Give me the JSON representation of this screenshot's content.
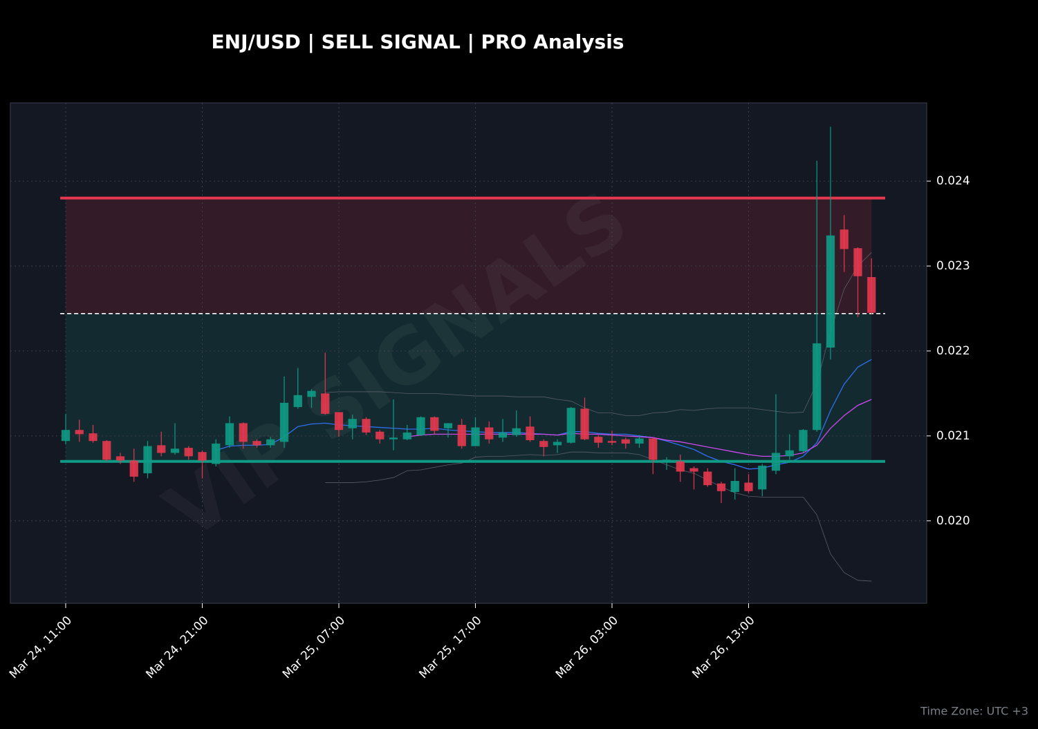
{
  "chart_data": {
    "type": "candlestick",
    "title": "ENJ/USD | SELL SIGNAL | PRO Analysis",
    "watermark": "VIP SIGNALS",
    "footnote": "Time Zone: UTC +3",
    "categories": [
      "Mar 24, 11:00",
      null,
      null,
      null,
      null,
      null,
      null,
      null,
      null,
      null,
      "Mar 24, 21:00",
      null,
      null,
      null,
      null,
      null,
      null,
      null,
      null,
      null,
      "Mar 25, 07:00",
      null,
      null,
      null,
      null,
      null,
      null,
      null,
      null,
      null,
      "Mar 25, 17:00",
      null,
      null,
      null,
      null,
      null,
      null,
      null,
      null,
      null,
      "Mar 26, 03:00",
      null,
      null,
      null,
      null,
      null,
      null,
      null,
      null,
      null,
      "Mar 26, 13:00",
      null,
      null,
      null,
      null,
      null,
      null,
      null,
      null,
      null
    ],
    "open": [
      0.02094,
      0.02107,
      0.02103,
      0.02094,
      0.02076,
      0.02071,
      0.02056,
      0.02089,
      0.0208,
      0.02086,
      0.02081,
      0.02067,
      0.02089,
      0.02115,
      0.02094,
      0.02089,
      0.02093,
      0.02134,
      0.02146,
      0.0215,
      0.02128,
      0.02109,
      0.0212,
      0.02105,
      0.02096,
      0.02096,
      0.02101,
      0.02122,
      0.02109,
      0.02113,
      0.02088,
      0.0211,
      0.02098,
      0.02101,
      0.02111,
      0.02094,
      0.02089,
      0.02092,
      0.02132,
      0.02099,
      0.02094,
      0.02096,
      0.02091,
      0.02097,
      0.0207,
      0.0207,
      0.02062,
      0.02058,
      0.02044,
      0.02034,
      0.02045,
      0.02037,
      0.02059,
      0.02076,
      0.02082,
      0.02107,
      0.02204,
      0.02343,
      0.02321,
      0.02287
    ],
    "high": [
      0.02126,
      0.02119,
      0.02113,
      0.02095,
      0.0208,
      0.02085,
      0.02094,
      0.02105,
      0.02115,
      0.02088,
      0.02083,
      0.02096,
      0.02123,
      0.02116,
      0.02096,
      0.02099,
      0.0217,
      0.0218,
      0.02155,
      0.02198,
      0.02128,
      0.02125,
      0.02122,
      0.02107,
      0.02143,
      0.02113,
      0.02123,
      0.02123,
      0.02115,
      0.0212,
      0.02122,
      0.02117,
      0.0212,
      0.0213,
      0.02123,
      0.02096,
      0.02096,
      0.02134,
      0.02145,
      0.02101,
      0.02106,
      0.02098,
      0.02101,
      0.02098,
      0.02075,
      0.02078,
      0.02064,
      0.02062,
      0.02046,
      0.02062,
      0.02055,
      0.02067,
      0.02149,
      0.02102,
      0.02108,
      0.02424,
      0.02464,
      0.0236,
      0.02322,
      0.02309
    ],
    "low": [
      0.0209,
      0.02093,
      0.02092,
      0.0207,
      0.02067,
      0.02046,
      0.0205,
      0.02076,
      0.02078,
      0.02072,
      0.0205,
      0.02064,
      0.02086,
      0.02085,
      0.02086,
      0.02086,
      0.02086,
      0.02132,
      0.02133,
      0.02125,
      0.02099,
      0.02096,
      0.02101,
      0.02091,
      0.02083,
      0.02095,
      0.021,
      0.02102,
      0.02098,
      0.02085,
      0.02088,
      0.02091,
      0.02093,
      0.02099,
      0.02093,
      0.02076,
      0.0208,
      0.02091,
      0.02095,
      0.02086,
      0.02089,
      0.02085,
      0.02086,
      0.02055,
      0.0206,
      0.02046,
      0.02037,
      0.0204,
      0.02021,
      0.02025,
      0.02033,
      0.02029,
      0.02055,
      0.02072,
      0.0208,
      0.02105,
      0.0219,
      0.02293,
      0.0224,
      0.02243
    ],
    "close": [
      0.02107,
      0.02102,
      0.02094,
      0.02072,
      0.02071,
      0.02052,
      0.02088,
      0.0208,
      0.02085,
      0.02076,
      0.02071,
      0.02091,
      0.02115,
      0.02093,
      0.02089,
      0.02096,
      0.02139,
      0.02148,
      0.02153,
      0.02126,
      0.02107,
      0.0212,
      0.02104,
      0.02096,
      0.02098,
      0.02104,
      0.02122,
      0.02106,
      0.02115,
      0.02088,
      0.0211,
      0.02096,
      0.02104,
      0.02109,
      0.02095,
      0.02087,
      0.02093,
      0.02133,
      0.02096,
      0.02092,
      0.02092,
      0.02091,
      0.02097,
      0.02072,
      0.02072,
      0.02058,
      0.02058,
      0.02042,
      0.02035,
      0.02047,
      0.02035,
      0.02065,
      0.0208,
      0.02083,
      0.02107,
      0.02209,
      0.02336,
      0.0232,
      0.02288,
      0.02245
    ],
    "up_color": "#0f9b85",
    "down_color": "#e5384f",
    "series": [
      {
        "color": "#2f6ff0",
        "width": 1.3,
        "values": [
          null,
          null,
          null,
          null,
          null,
          null,
          null,
          null,
          null,
          null,
          null,
          0.02083,
          0.02088,
          0.02089,
          0.02089,
          0.0209,
          0.02099,
          0.02111,
          0.02114,
          0.02115,
          0.02113,
          0.02112,
          0.02111,
          0.0211,
          0.02109,
          0.02108,
          0.02108,
          0.02109,
          0.02107,
          0.02106,
          0.02105,
          0.02104,
          0.02104,
          0.02104,
          0.02103,
          0.02102,
          0.02101,
          0.02105,
          0.02105,
          0.02103,
          0.02102,
          0.02102,
          0.021,
          0.02098,
          0.02094,
          0.02089,
          0.02084,
          0.02076,
          0.0207,
          0.02066,
          0.02061,
          0.02062,
          0.02066,
          0.02069,
          0.02076,
          0.02092,
          0.0213,
          0.02161,
          0.02181,
          0.0219
        ]
      },
      {
        "color": "#d048f0",
        "width": 1.3,
        "values": [
          null,
          null,
          null,
          null,
          null,
          null,
          null,
          null,
          null,
          null,
          null,
          null,
          null,
          null,
          null,
          null,
          null,
          null,
          null,
          null,
          null,
          null,
          null,
          null,
          null,
          0.02099,
          0.02101,
          0.02102,
          0.02102,
          0.02102,
          0.02102,
          0.02102,
          0.02102,
          0.02102,
          0.02102,
          0.02102,
          0.02101,
          0.02103,
          0.02102,
          0.02102,
          0.02101,
          0.021,
          0.02099,
          0.02098,
          0.02095,
          0.02093,
          0.0209,
          0.02087,
          0.02084,
          0.02081,
          0.02078,
          0.02076,
          0.02076,
          0.02077,
          0.0208,
          0.02089,
          0.02109,
          0.02124,
          0.02136,
          0.02143
        ]
      },
      {
        "color": "#5a5e68",
        "width": 0.8,
        "values": [
          null,
          null,
          null,
          null,
          null,
          null,
          null,
          null,
          null,
          null,
          null,
          null,
          null,
          null,
          null,
          null,
          null,
          null,
          null,
          0.02151,
          0.02152,
          0.02152,
          0.02152,
          0.02152,
          0.02151,
          0.0215,
          0.0215,
          0.0215,
          0.02149,
          0.02148,
          0.02147,
          0.02147,
          0.02147,
          0.02146,
          0.02146,
          0.02146,
          0.02143,
          0.02141,
          0.02133,
          0.02127,
          0.02127,
          0.02124,
          0.02124,
          0.02127,
          0.02128,
          0.02131,
          0.0213,
          0.02132,
          0.02133,
          0.02133,
          0.02133,
          0.02131,
          0.02129,
          0.02127,
          0.02128,
          0.02162,
          0.02223,
          0.02273,
          0.023,
          0.02316
        ]
      },
      {
        "color": "#5a5e68",
        "width": 0.8,
        "values": [
          null,
          null,
          null,
          null,
          null,
          null,
          null,
          null,
          null,
          null,
          null,
          null,
          null,
          null,
          null,
          null,
          null,
          null,
          null,
          0.02045,
          0.02045,
          0.02045,
          0.02046,
          0.02048,
          0.02051,
          0.02059,
          0.0206,
          0.02063,
          0.02066,
          0.02068,
          0.02075,
          0.02076,
          0.02076,
          0.02077,
          0.02078,
          0.02077,
          0.02078,
          0.02081,
          0.02081,
          0.0208,
          0.0208,
          0.0208,
          0.02078,
          0.02072,
          0.02066,
          0.0206,
          0.02056,
          0.02048,
          0.0204,
          0.02033,
          0.02029,
          0.02028,
          0.02028,
          0.02028,
          0.02028,
          0.02007,
          0.01961,
          0.01939,
          0.0193,
          0.01929
        ]
      }
    ],
    "hlines": [
      {
        "value": 0.0238,
        "color": "#e5384f",
        "style": "solid"
      },
      {
        "value": 0.02244,
        "color": "#ffffff",
        "style": "dashed"
      },
      {
        "value": 0.0207,
        "color": "#0f9b85",
        "style": "solid"
      }
    ],
    "ylim": [
      0.01903,
      0.02492
    ],
    "yticks": [
      {
        "value": 0.02,
        "label": "0.020"
      },
      0.021,
      0.022,
      0.023,
      0.024
    ],
    "grid": true
  }
}
